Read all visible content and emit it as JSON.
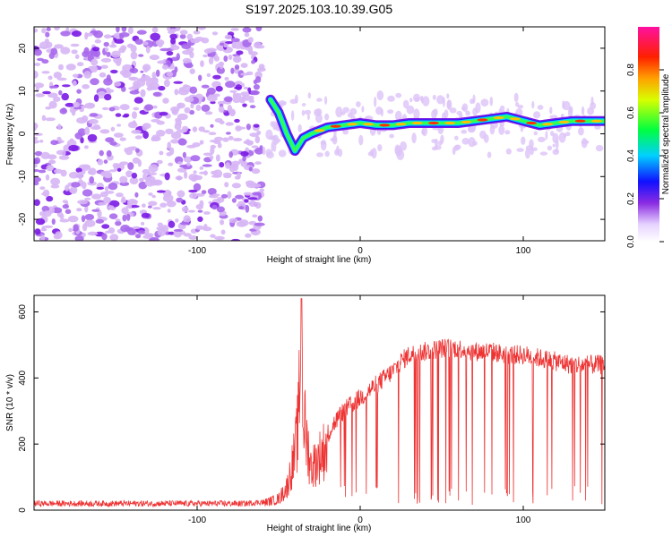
{
  "title": "S197.2025.103.10.39.G05",
  "colors": {
    "snr_line": "#ee3333",
    "axis": "#000000",
    "noise_light": "#d7b6f5",
    "noise_dark": "#7b19e6"
  },
  "chart_data": [
    {
      "type": "heatmap",
      "name": "spectrogram",
      "xlabel": "Height of straight line (km)",
      "ylabel": "Frequency (Hz)",
      "xlim": [
        -200,
        150
      ],
      "ylim": [
        -25,
        25
      ],
      "xticks": [
        -100,
        0,
        100
      ],
      "xtick_labels": [
        "-100",
        "0",
        "100"
      ],
      "yticks": [
        -20,
        -10,
        0,
        10,
        20
      ],
      "ytick_labels": [
        "-20",
        "-10",
        "0",
        "10",
        "20"
      ],
      "noise_region_x": [
        -200,
        -60
      ],
      "signal_ridge": {
        "x": [
          -55,
          -50,
          -45,
          -40,
          -35,
          -30,
          -20,
          -10,
          0,
          10,
          20,
          30,
          40,
          50,
          60,
          70,
          80,
          90,
          100,
          110,
          120,
          130,
          140,
          150
        ],
        "y": [
          8,
          5,
          0,
          -4,
          -1,
          0,
          1.5,
          2,
          2.5,
          2,
          2,
          2.5,
          2.5,
          2.5,
          2.5,
          3,
          3.5,
          4,
          3,
          2,
          2.5,
          3,
          3,
          3
        ]
      },
      "colorbar": {
        "label": "Normalized spectral amplitude",
        "range": [
          0,
          1
        ],
        "ticks": [
          0.0,
          0.2,
          0.4,
          0.6,
          0.8
        ],
        "tick_labels": [
          "0.0",
          "0.2",
          "0.4",
          "0.6",
          "0.8"
        ]
      }
    },
    {
      "type": "line",
      "name": "snr",
      "xlabel": "Height of straight line (km)",
      "ylabel": "SNR (10 * v/v)",
      "xlim": [
        -200,
        150
      ],
      "ylim": [
        0,
        650
      ],
      "xticks": [
        -100,
        0,
        100
      ],
      "xtick_labels": [
        "-100",
        "0",
        "100"
      ],
      "yticks": [
        0,
        200,
        400,
        600
      ],
      "ytick_labels": [
        "0",
        "200",
        "400",
        "600"
      ],
      "series": [
        {
          "name": "SNR",
          "x": [
            -200,
            -150,
            -100,
            -70,
            -60,
            -50,
            -45,
            -40,
            -38,
            -36,
            -35,
            -33,
            -30,
            -25,
            -20,
            -15,
            -10,
            -5,
            0,
            5,
            10,
            15,
            20,
            25,
            30,
            40,
            50,
            60,
            70,
            80,
            90,
            100,
            110,
            120,
            130,
            140,
            150
          ],
          "y": [
            20,
            20,
            20,
            20,
            25,
            40,
            80,
            200,
            300,
            640,
            350,
            250,
            150,
            190,
            230,
            270,
            300,
            320,
            340,
            360,
            380,
            400,
            420,
            450,
            470,
            480,
            490,
            490,
            480,
            480,
            470,
            470,
            460,
            450,
            440,
            440,
            440
          ]
        }
      ]
    }
  ]
}
